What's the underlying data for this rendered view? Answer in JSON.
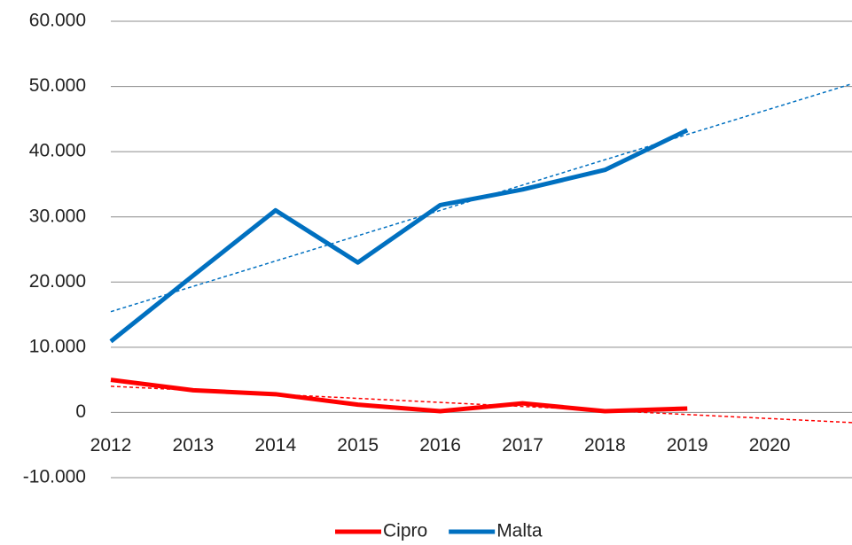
{
  "chart_data": {
    "type": "line",
    "x": [
      2012,
      2013,
      2014,
      2015,
      2016,
      2017,
      2018,
      2019
    ],
    "series": [
      {
        "name": "Cipro",
        "color": "#ff0000",
        "values": [
          5000,
          3400,
          2800,
          1200,
          200,
          1400,
          200,
          600
        ]
      },
      {
        "name": "Malta",
        "color": "#0070c0",
        "values": [
          10900,
          21000,
          31000,
          23000,
          31800,
          34200,
          37200,
          43300
        ]
      }
    ],
    "xlim": [
      2012,
      2021
    ],
    "xticks": [
      2012,
      2013,
      2014,
      2015,
      2016,
      2017,
      2018,
      2019,
      2020
    ],
    "ylim": [
      -10000,
      60000
    ],
    "yticks": [
      {
        "value": -10000,
        "label": "-10.000"
      },
      0,
      {
        "value": 10000,
        "label": "10.000"
      },
      {
        "value": 20000,
        "label": "20.000"
      },
      {
        "value": 30000,
        "label": "30.000"
      },
      {
        "value": 40000,
        "label": "40.000"
      },
      {
        "value": 50000,
        "label": "50.000"
      },
      {
        "value": 60000,
        "label": "60.000"
      }
    ],
    "grid": true,
    "trendline": "linear",
    "legend": "bottom"
  }
}
